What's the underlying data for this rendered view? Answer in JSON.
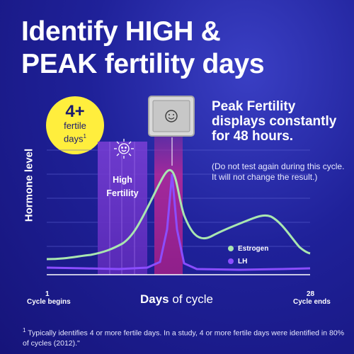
{
  "headline": {
    "line1": "Identify HIGH &",
    "line2": "PEAK fertility days"
  },
  "badge": {
    "number": "4+",
    "line1": "fertile",
    "line2": "days",
    "superscript": "1"
  },
  "peak": {
    "title": "Peak Fertility displays constantly for 48 hours.",
    "note": "(Do not test again during this cycle. It will not change the result.)"
  },
  "chart": {
    "y_label": "Hormone level",
    "x_label_bold": "Days",
    "x_label_rest": " of cycle",
    "start_day": "1",
    "start_label": "Cycle begins",
    "end_day": "28",
    "end_label": "Cycle ends",
    "high_fertility_line1": "High",
    "high_fertility_line2": "Fertility",
    "display_icon": "smiley-face-icon",
    "sun_icon": "smiling-sun-icon"
  },
  "legend": {
    "estrogen": "Estrogen",
    "lh": "LH"
  },
  "colors": {
    "estrogen": "#a9e6b0",
    "lh": "#8b4dff",
    "badge": "#ffee3d",
    "high_band": "#7b3fd6",
    "peak_band": "#b0299b"
  },
  "footnote": {
    "marker": "1",
    "text": "Typically identifies 4 or more fertile days. In a study, 4 or more fertile days were identified in 80% of cycles (2012).\""
  }
}
